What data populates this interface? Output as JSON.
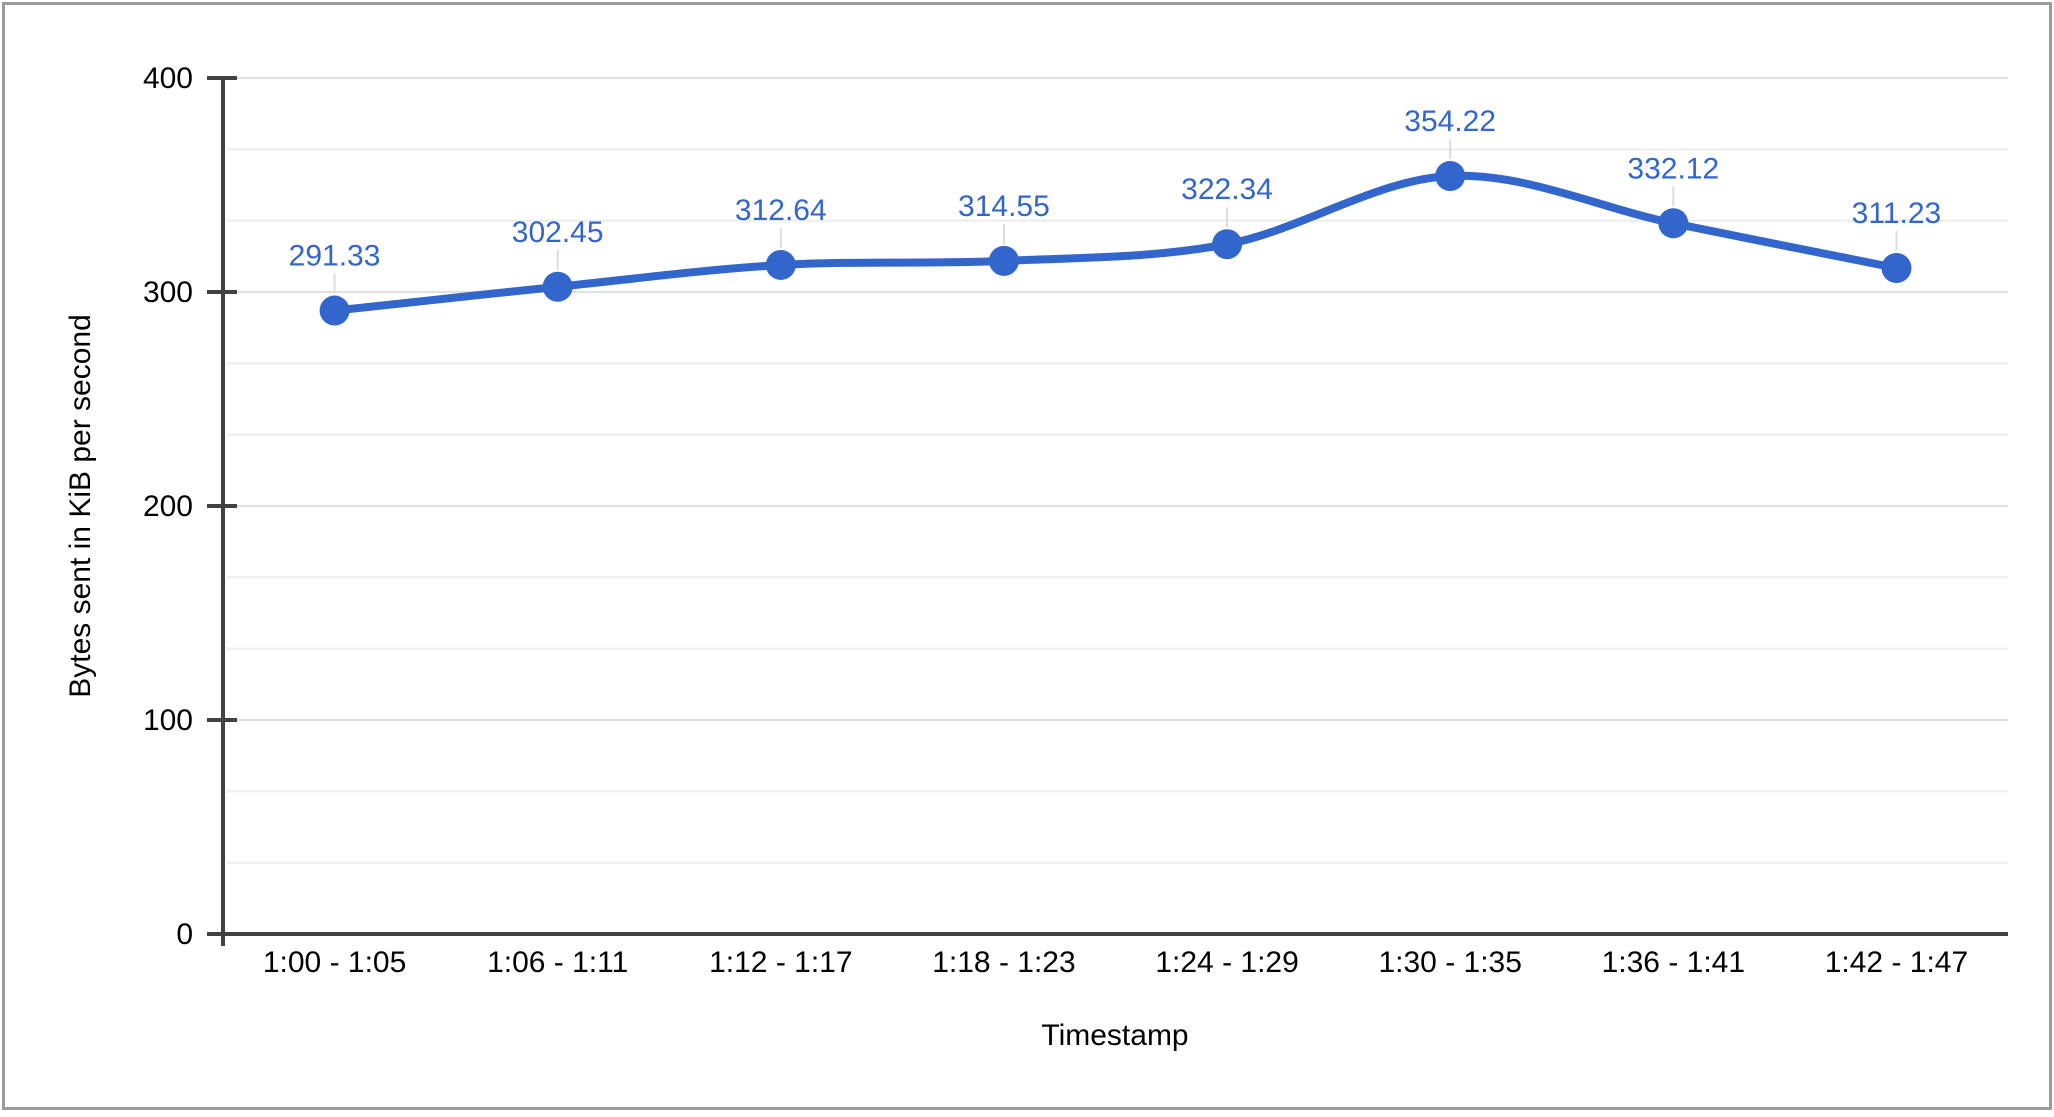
{
  "chart_data": {
    "type": "line",
    "line_style": "smooth",
    "title": "",
    "categories": [
      "1:00 - 1:05",
      "1:06 - 1:11",
      "1:12 - 1:17",
      "1:18 - 1:23",
      "1:24 - 1:29",
      "1:30 - 1:35",
      "1:36 - 1:41",
      "1:42 - 1:47"
    ],
    "values": [
      291.33,
      302.45,
      312.64,
      314.55,
      322.34,
      354.22,
      332.12,
      311.23
    ],
    "point_labels": [
      "291.33",
      "302.45",
      "312.64",
      "314.55",
      "322.34",
      "354.22",
      "332.12",
      "311.23"
    ],
    "xlabel": "Timestamp",
    "ylabel": "Bytes sent in KiB per second",
    "ylim": [
      0,
      400
    ],
    "yticks": [
      0,
      100,
      200,
      300,
      400
    ],
    "ytick_labels": [
      "0",
      "100",
      "200",
      "300",
      "400"
    ],
    "minor_gridline_divisions_per_major": 3,
    "grid": true,
    "legend": "none",
    "data_labels_shown": true,
    "colors": {
      "series": "#3366CC",
      "data_label": "#3366CC",
      "axis_line": "#424242",
      "tick_label": "#000000",
      "axis_title": "#000000",
      "major_gridline": "#E0E0E0",
      "minor_gridline": "#ECECEC",
      "leader_line": "#DDDDDD",
      "frame_border": "#9B9B9B",
      "background": "#FFFFFF"
    }
  }
}
